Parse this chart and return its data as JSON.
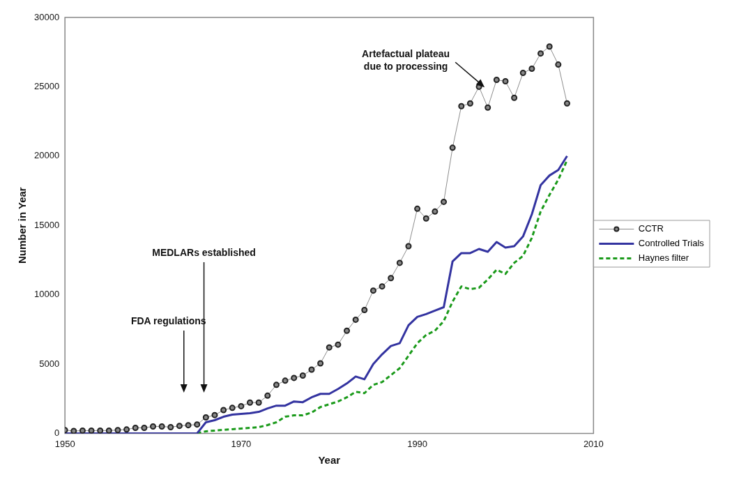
{
  "chart_data": {
    "type": "line",
    "xlabel": "Year",
    "ylabel": "Number in Year",
    "x": [
      1950,
      1951,
      1952,
      1953,
      1954,
      1955,
      1956,
      1957,
      1958,
      1959,
      1960,
      1961,
      1962,
      1963,
      1964,
      1965,
      1966,
      1967,
      1968,
      1969,
      1970,
      1971,
      1972,
      1973,
      1974,
      1975,
      1976,
      1977,
      1978,
      1979,
      1980,
      1981,
      1982,
      1983,
      1984,
      1985,
      1986,
      1987,
      1988,
      1989,
      1990,
      1991,
      1992,
      1993,
      1994,
      1995,
      1996,
      1997,
      1998,
      1999,
      2000,
      2001,
      2002,
      2003,
      2004,
      2005,
      2006,
      2007
    ],
    "series": [
      {
        "name": "CCTR",
        "color": "#8c8c8c",
        "marker": "circle",
        "line_style": "solid",
        "values": [
          240,
          170,
          200,
          200,
          200,
          200,
          240,
          280,
          400,
          400,
          500,
          500,
          450,
          540,
          590,
          640,
          1150,
          1320,
          1680,
          1840,
          1960,
          2220,
          2220,
          2720,
          3500,
          3800,
          4000,
          4170,
          4600,
          5050,
          6200,
          6400,
          7400,
          8200,
          8900,
          10300,
          10600,
          11200,
          12300,
          13500,
          16200,
          15500,
          16000,
          16700,
          20600,
          23600,
          23800,
          25000,
          23500,
          25500,
          25400,
          24200,
          26000,
          26300,
          27400,
          27900,
          26600,
          23800
        ]
      },
      {
        "name": "Controlled Trials",
        "color": "#3333a0",
        "marker": "none",
        "line_style": "solid",
        "values": [
          0,
          0,
          0,
          0,
          0,
          0,
          0,
          0,
          0,
          0,
          0,
          0,
          0,
          0,
          0,
          0,
          800,
          950,
          1200,
          1350,
          1400,
          1450,
          1550,
          1800,
          2000,
          2000,
          2300,
          2250,
          2600,
          2850,
          2850,
          3200,
          3600,
          4100,
          3900,
          5000,
          5700,
          6300,
          6500,
          7800,
          8400,
          8600,
          8850,
          9100,
          12400,
          13000,
          13000,
          13300,
          13100,
          13800,
          13400,
          13500,
          14200,
          15800,
          17900,
          18600,
          19000,
          20000
        ]
      },
      {
        "name": "Haynes filter",
        "color": "#1a9a1a",
        "marker": "none",
        "line_style": "dashed",
        "values": [
          null,
          null,
          null,
          null,
          null,
          null,
          null,
          null,
          null,
          null,
          null,
          null,
          null,
          null,
          null,
          0,
          150,
          200,
          250,
          300,
          350,
          400,
          450,
          600,
          800,
          1200,
          1300,
          1300,
          1500,
          1900,
          2100,
          2300,
          2600,
          3000,
          2900,
          3500,
          3700,
          4200,
          4700,
          5600,
          6500,
          7100,
          7400,
          8100,
          9500,
          10600,
          10400,
          10500,
          11100,
          11800,
          11500,
          12300,
          12800,
          14100,
          16000,
          17200,
          18300,
          19700
        ]
      }
    ],
    "xlim": [
      1950,
      2010
    ],
    "xticks": [
      1950,
      1970,
      1990,
      2010
    ],
    "ylim": [
      0,
      30000
    ],
    "yticks": [
      0,
      5000,
      10000,
      15000,
      20000,
      25000,
      30000
    ],
    "grid": false,
    "legend": "right",
    "annotations": [
      "FDA regulations",
      "MEDLARs established",
      "Artefactual plateau due to processing"
    ]
  }
}
